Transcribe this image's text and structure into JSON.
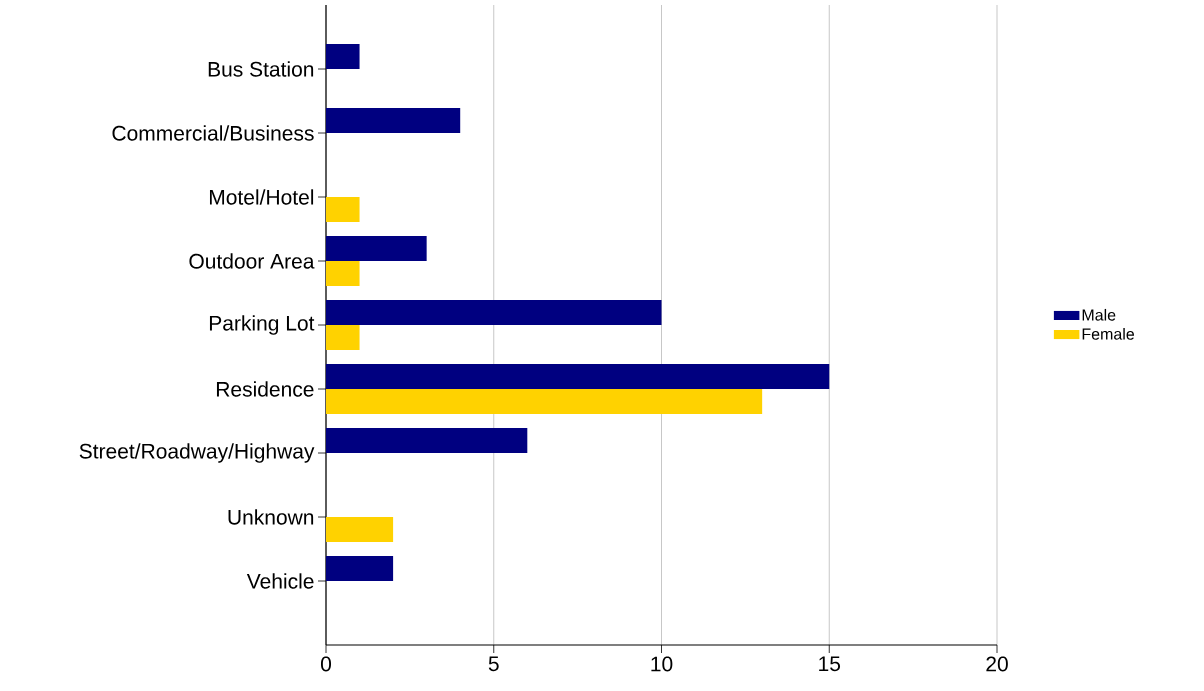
{
  "chart_data": {
    "type": "bar",
    "orientation": "horizontal",
    "categories": [
      "Bus Station",
      "Commercial/Business",
      "Motel/Hotel",
      "Outdoor Area",
      "Parking Lot",
      "Residence",
      "Street/Roadway/Highway",
      "Unknown",
      "Vehicle"
    ],
    "series": [
      {
        "name": "Male",
        "color": "#000080",
        "values": [
          1,
          4,
          0,
          3,
          10,
          15,
          6,
          0,
          2
        ]
      },
      {
        "name": "Female",
        "color": "#ffd200",
        "values": [
          0,
          0,
          1,
          1,
          1,
          13,
          0,
          2,
          0
        ]
      }
    ],
    "xlim": [
      0,
      20
    ],
    "xticks": [
      0,
      5,
      10,
      15,
      20
    ],
    "grid": "x",
    "legend": "right"
  }
}
